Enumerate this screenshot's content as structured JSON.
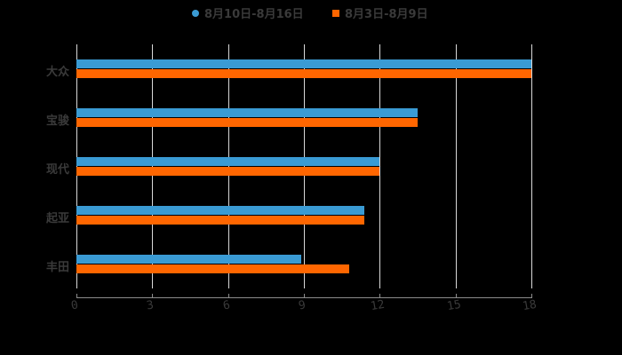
{
  "chart_data": {
    "type": "bar",
    "orientation": "horizontal",
    "title": "",
    "xlabel": "",
    "ylabel": "",
    "categories": [
      "大众",
      "宝骏",
      "现代",
      "起亚",
      "丰田"
    ],
    "series": [
      {
        "name": "8月10日-8月16日",
        "color": "#3a9bd4",
        "marker": "circle",
        "values": [
          18,
          13.5,
          12,
          11.4,
          8.9
        ]
      },
      {
        "name": "8月3日-8月9日",
        "color": "#ff6600",
        "marker": "square",
        "values": [
          18,
          13.5,
          12,
          11.4,
          10.8
        ]
      }
    ],
    "xlim": [
      0,
      18
    ],
    "xticks": [
      "0",
      "3",
      "6",
      "9",
      "12",
      "15",
      "18"
    ],
    "grid": true,
    "legend_position": "top"
  },
  "colors": {
    "background": "#000000",
    "text": "#3a3a3a",
    "grid": "#d9d9d9"
  }
}
